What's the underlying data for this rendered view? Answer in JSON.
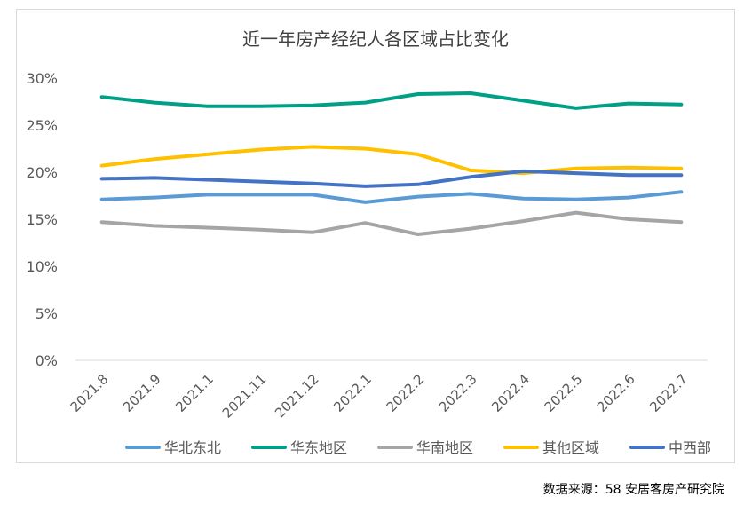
{
  "source_note": "数据来源：58 安居客房产研究院",
  "chart_data": {
    "type": "line",
    "title": "近一年房产经纪人各区域占比变化",
    "xlabel": "",
    "ylabel": "",
    "categories": [
      "2021.8",
      "2021.9",
      "2021.1",
      "2021.11",
      "2021.12",
      "2022.1",
      "2022.2",
      "2022.3",
      "2022.4",
      "2022.5",
      "2022.6",
      "2022.7"
    ],
    "ylim": [
      0,
      30
    ],
    "yticks": [
      "0%",
      "5%",
      "10%",
      "15%",
      "20%",
      "25%",
      "30%"
    ],
    "ytick_values": [
      0,
      5,
      10,
      15,
      20,
      25,
      30
    ],
    "grid": false,
    "legend_position": "bottom",
    "series": [
      {
        "name": "华北东北",
        "color": "#5b9bd5",
        "values": [
          17.1,
          17.3,
          17.6,
          17.6,
          17.6,
          16.8,
          17.4,
          17.7,
          17.2,
          17.1,
          17.3,
          17.9
        ]
      },
      {
        "name": "华东地区",
        "color": "#00a087",
        "values": [
          28.0,
          27.4,
          27.0,
          27.0,
          27.1,
          27.4,
          28.3,
          28.4,
          27.6,
          26.8,
          27.3,
          27.2
        ]
      },
      {
        "name": "华南地区",
        "color": "#a5a5a5",
        "values": [
          14.7,
          14.3,
          14.1,
          13.9,
          13.6,
          14.6,
          13.4,
          14.0,
          14.8,
          15.7,
          15.0,
          14.7
        ]
      },
      {
        "name": "其他区域",
        "color": "#ffc000",
        "values": [
          20.7,
          21.4,
          21.9,
          22.4,
          22.7,
          22.5,
          21.9,
          20.2,
          19.9,
          20.4,
          20.5,
          20.4
        ]
      },
      {
        "name": "中西部",
        "color": "#4472c4",
        "values": [
          19.3,
          19.4,
          19.2,
          19.0,
          18.8,
          18.5,
          18.7,
          19.5,
          20.1,
          19.9,
          19.7,
          19.7
        ]
      }
    ]
  }
}
